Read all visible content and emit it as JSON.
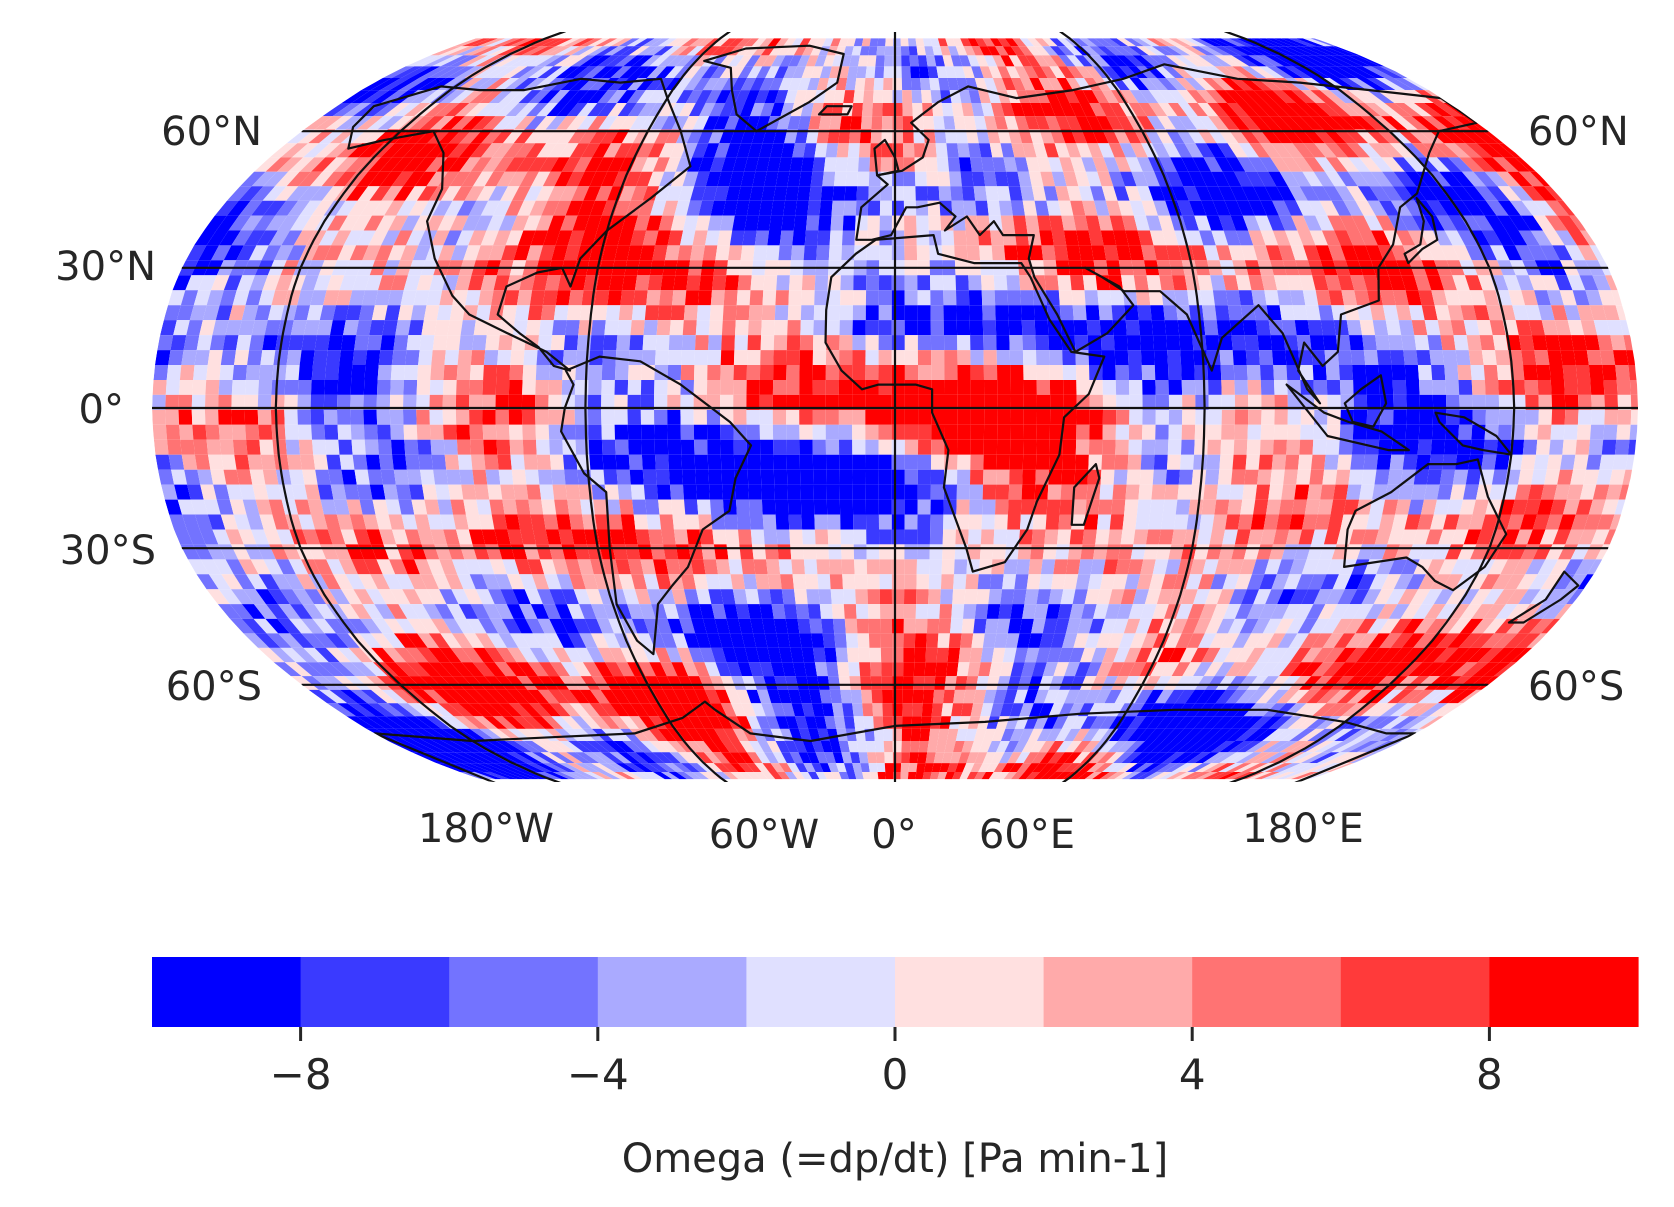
{
  "map": {
    "projection": "Robinson",
    "lat_labels_left": [
      "60°N",
      "30°N",
      "0°",
      "30°S",
      "60°S"
    ],
    "lat_labels_right": [
      "60°N",
      "60°S"
    ],
    "lon_labels": [
      "180°W",
      "60°W",
      "0°",
      "60°E",
      "180°E"
    ],
    "field_name": "Omega",
    "field_units": "Pa min-1"
  },
  "colorbar": {
    "label": "Omega (=dp/dt) [Pa min-1]",
    "tick_labels": [
      "−8",
      "−4",
      "0",
      "4",
      "8"
    ],
    "ticks": [
      -8,
      -4,
      0,
      4,
      8
    ],
    "range": [
      -10,
      10
    ],
    "levels": [
      -10,
      -8,
      -6,
      -4,
      -2,
      0,
      2,
      4,
      6,
      8,
      10
    ],
    "colors": [
      "#0000ff",
      "#3a3aff",
      "#7373ff",
      "#aaaaff",
      "#e0e0ff",
      "#ffe0e0",
      "#ffaaaa",
      "#ff7373",
      "#ff3a3a",
      "#ff0000"
    ]
  },
  "colors": {
    "coastline": "#111111",
    "gridline": "#111111",
    "text": "#262626"
  }
}
